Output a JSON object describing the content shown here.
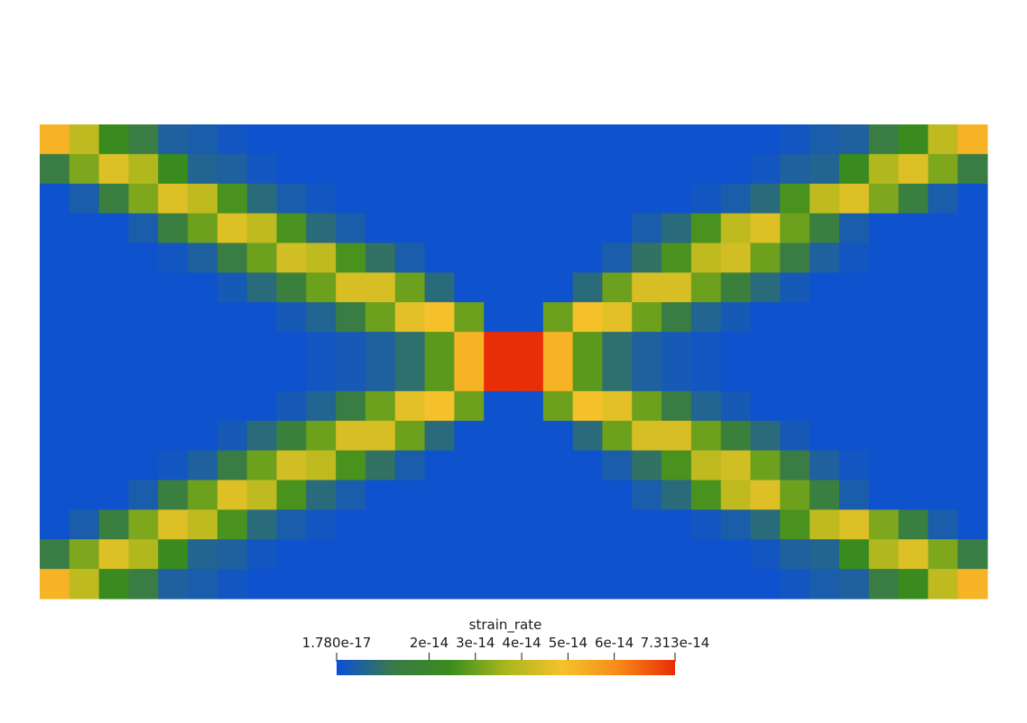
{
  "chart_data": {
    "type": "heatmap",
    "rows": 16,
    "cols": 32,
    "field_name": "strain_rate",
    "range": {
      "min": 1.78e-17,
      "max": 7.313e-14
    },
    "colormap": [
      "#0b4fd8",
      "#3a7a4a",
      "#3a8c1e",
      "#a8b71c",
      "#f5c22b",
      "#f78a18",
      "#e82d06"
    ],
    "colorbar": {
      "title": "strain_rate",
      "ticks": [
        {
          "value": 1.78e-17,
          "label": "1.780e-17"
        },
        {
          "value": 2e-14,
          "label": "2e-14"
        },
        {
          "value": 3e-14,
          "label": "3e-14"
        },
        {
          "value": 4e-14,
          "label": "4e-14"
        },
        {
          "value": 5e-14,
          "label": "5e-14"
        },
        {
          "value": 6e-14,
          "label": "6e-14"
        },
        {
          "value": 7.313e-14,
          "label": "7.313e-14"
        }
      ]
    },
    "values": [
      [
        5.2e-14,
        4e-14,
        2.4e-14,
        1.4e-14,
        5e-15,
        4e-15,
        2e-15,
        1e-15,
        1e-15,
        1e-15,
        1e-15,
        1e-15,
        1e-15,
        1e-15,
        1e-15,
        1e-15,
        1e-15,
        1e-15,
        1e-15,
        1e-15,
        1e-15,
        1e-15,
        1e-15,
        1e-15,
        1e-15,
        2e-15,
        4e-15,
        5e-15,
        1.4e-14,
        2.4e-14,
        4e-14,
        5.2e-14
      ],
      [
        1.4e-14,
        3.2e-14,
        4.5e-14,
        3.8e-14,
        2.4e-14,
        6e-15,
        5e-15,
        2e-15,
        1e-15,
        1e-15,
        1e-15,
        1e-15,
        1e-15,
        1e-15,
        1e-15,
        1e-15,
        1e-15,
        1e-15,
        1e-15,
        1e-15,
        1e-15,
        1e-15,
        1e-15,
        1e-15,
        2e-15,
        5e-15,
        6e-15,
        2.4e-14,
        3.8e-14,
        4.5e-14,
        3.2e-14,
        1.4e-14
      ],
      [
        1e-15,
        4e-15,
        1.5e-14,
        3.2e-14,
        4.5e-14,
        4e-14,
        2.6e-14,
        8e-15,
        4e-15,
        2e-15,
        1e-15,
        1e-15,
        1e-15,
        1e-15,
        1e-15,
        1e-15,
        1e-15,
        1e-15,
        1e-15,
        1e-15,
        1e-15,
        1e-15,
        2e-15,
        4e-15,
        8e-15,
        2.6e-14,
        4e-14,
        4.5e-14,
        3.2e-14,
        1.5e-14,
        4e-15,
        1e-15
      ],
      [
        1e-15,
        1e-15,
        1e-15,
        4e-15,
        1.5e-14,
        3e-14,
        4.5e-14,
        4e-14,
        2.6e-14,
        8e-15,
        4e-15,
        1e-15,
        1e-15,
        1e-15,
        1e-15,
        1e-15,
        1e-15,
        1e-15,
        1e-15,
        1e-15,
        4e-15,
        8e-15,
        2.6e-14,
        4e-14,
        4.5e-14,
        3e-14,
        1.5e-14,
        4e-15,
        1e-15,
        1e-15,
        1e-15,
        1e-15
      ],
      [
        1e-15,
        1e-15,
        1e-15,
        1e-15,
        2e-15,
        5e-15,
        1.4e-14,
        3e-14,
        4.3e-14,
        4e-14,
        2.6e-14,
        1e-14,
        4e-15,
        1e-15,
        1e-15,
        1e-15,
        1e-15,
        1e-15,
        1e-15,
        4e-15,
        1e-14,
        2.6e-14,
        4e-14,
        4.3e-14,
        3e-14,
        1.4e-14,
        5e-15,
        2e-15,
        1e-15,
        1e-15,
        1e-15,
        1e-15
      ],
      [
        1e-15,
        1e-15,
        1e-15,
        1e-15,
        1e-15,
        1e-15,
        3e-15,
        8e-15,
        1.6e-14,
        3e-14,
        4.4e-14,
        4.4e-14,
        3e-14,
        8e-15,
        1e-15,
        1e-15,
        1e-15,
        1e-15,
        8e-15,
        3e-14,
        4.4e-14,
        4.4e-14,
        3e-14,
        1.6e-14,
        8e-15,
        3e-15,
        1e-15,
        1e-15,
        1e-15,
        1e-15,
        1e-15,
        1e-15
      ],
      [
        1e-15,
        1e-15,
        1e-15,
        1e-15,
        1e-15,
        1e-15,
        1e-15,
        1e-15,
        3e-15,
        6e-15,
        1.4e-14,
        3e-14,
        4.6e-14,
        4.9e-14,
        3e-14,
        1e-15,
        1e-15,
        3e-14,
        4.9e-14,
        4.6e-14,
        3e-14,
        1.4e-14,
        6e-15,
        3e-15,
        1e-15,
        1e-15,
        1e-15,
        1e-15,
        1e-15,
        1e-15,
        1e-15,
        1e-15
      ],
      [
        1e-15,
        1e-15,
        1e-15,
        1e-15,
        1e-15,
        1e-15,
        1e-15,
        1e-15,
        1e-15,
        2e-15,
        3e-15,
        5e-15,
        9e-15,
        2.8e-14,
        5.2e-14,
        7.3e-14,
        7.3e-14,
        5.2e-14,
        2.8e-14,
        9e-15,
        5e-15,
        3e-15,
        2e-15,
        1e-15,
        1e-15,
        1e-15,
        1e-15,
        1e-15,
        1e-15,
        1e-15,
        1e-15,
        1e-15
      ],
      [
        1e-15,
        1e-15,
        1e-15,
        1e-15,
        1e-15,
        1e-15,
        1e-15,
        1e-15,
        1e-15,
        2e-15,
        3e-15,
        5e-15,
        9e-15,
        2.8e-14,
        5.2e-14,
        7.3e-14,
        7.3e-14,
        5.2e-14,
        2.8e-14,
        9e-15,
        5e-15,
        3e-15,
        2e-15,
        1e-15,
        1e-15,
        1e-15,
        1e-15,
        1e-15,
        1e-15,
        1e-15,
        1e-15,
        1e-15
      ],
      [
        1e-15,
        1e-15,
        1e-15,
        1e-15,
        1e-15,
        1e-15,
        1e-15,
        1e-15,
        3e-15,
        6e-15,
        1.4e-14,
        3e-14,
        4.6e-14,
        4.9e-14,
        3e-14,
        1e-15,
        1e-15,
        3e-14,
        4.9e-14,
        4.6e-14,
        3e-14,
        1.4e-14,
        6e-15,
        3e-15,
        1e-15,
        1e-15,
        1e-15,
        1e-15,
        1e-15,
        1e-15,
        1e-15,
        1e-15
      ],
      [
        1e-15,
        1e-15,
        1e-15,
        1e-15,
        1e-15,
        1e-15,
        3e-15,
        8e-15,
        1.6e-14,
        3e-14,
        4.4e-14,
        4.4e-14,
        3e-14,
        8e-15,
        1e-15,
        1e-15,
        1e-15,
        1e-15,
        8e-15,
        3e-14,
        4.4e-14,
        4.4e-14,
        3e-14,
        1.6e-14,
        8e-15,
        3e-15,
        1e-15,
        1e-15,
        1e-15,
        1e-15,
        1e-15,
        1e-15
      ],
      [
        1e-15,
        1e-15,
        1e-15,
        1e-15,
        2e-15,
        5e-15,
        1.4e-14,
        3e-14,
        4.3e-14,
        4e-14,
        2.6e-14,
        1e-14,
        4e-15,
        1e-15,
        1e-15,
        1e-15,
        1e-15,
        1e-15,
        1e-15,
        4e-15,
        1e-14,
        2.6e-14,
        4e-14,
        4.3e-14,
        3e-14,
        1.4e-14,
        5e-15,
        2e-15,
        1e-15,
        1e-15,
        1e-15,
        1e-15
      ],
      [
        1e-15,
        1e-15,
        1e-15,
        4e-15,
        1.5e-14,
        3e-14,
        4.5e-14,
        4e-14,
        2.6e-14,
        8e-15,
        4e-15,
        1e-15,
        1e-15,
        1e-15,
        1e-15,
        1e-15,
        1e-15,
        1e-15,
        1e-15,
        1e-15,
        4e-15,
        8e-15,
        2.6e-14,
        4e-14,
        4.5e-14,
        3e-14,
        1.5e-14,
        4e-15,
        1e-15,
        1e-15,
        1e-15,
        1e-15
      ],
      [
        1e-15,
        4e-15,
        1.5e-14,
        3.2e-14,
        4.5e-14,
        4e-14,
        2.6e-14,
        8e-15,
        4e-15,
        2e-15,
        1e-15,
        1e-15,
        1e-15,
        1e-15,
        1e-15,
        1e-15,
        1e-15,
        1e-15,
        1e-15,
        1e-15,
        1e-15,
        1e-15,
        2e-15,
        4e-15,
        8e-15,
        2.6e-14,
        4e-14,
        4.5e-14,
        3.2e-14,
        1.5e-14,
        4e-15,
        1e-15
      ],
      [
        1.4e-14,
        3.2e-14,
        4.5e-14,
        3.8e-14,
        2.4e-14,
        6e-15,
        5e-15,
        2e-15,
        1e-15,
        1e-15,
        1e-15,
        1e-15,
        1e-15,
        1e-15,
        1e-15,
        1e-15,
        1e-15,
        1e-15,
        1e-15,
        1e-15,
        1e-15,
        1e-15,
        1e-15,
        1e-15,
        2e-15,
        5e-15,
        6e-15,
        2.4e-14,
        3.8e-14,
        4.5e-14,
        3.2e-14,
        1.4e-14
      ],
      [
        5.2e-14,
        4e-14,
        2.4e-14,
        1.4e-14,
        5e-15,
        4e-15,
        2e-15,
        1e-15,
        1e-15,
        1e-15,
        1e-15,
        1e-15,
        1e-15,
        1e-15,
        1e-15,
        1e-15,
        1e-15,
        1e-15,
        1e-15,
        1e-15,
        1e-15,
        1e-15,
        1e-15,
        1e-15,
        1e-15,
        2e-15,
        4e-15,
        5e-15,
        1.4e-14,
        2.4e-14,
        4e-14,
        5.2e-14
      ]
    ]
  }
}
